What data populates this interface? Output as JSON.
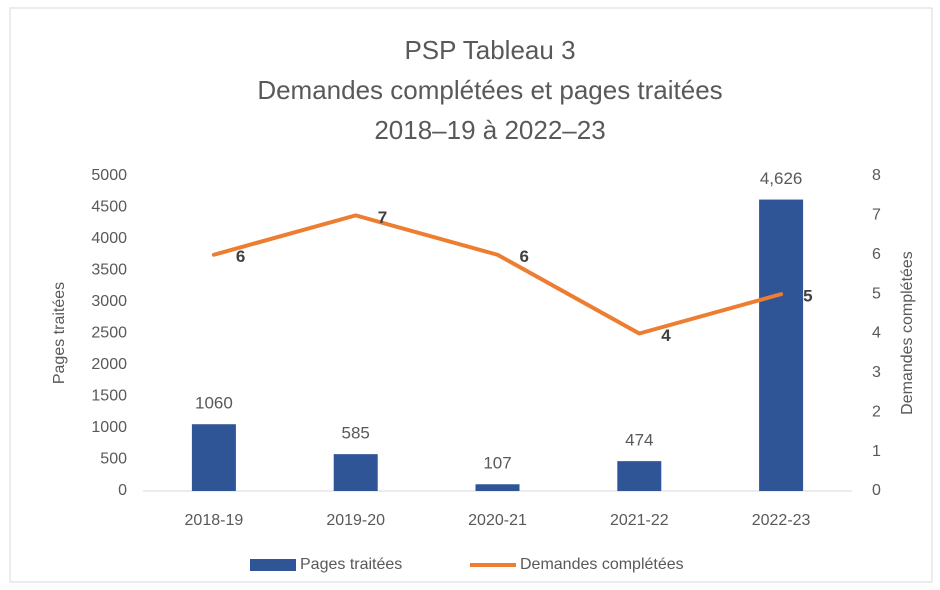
{
  "chart_data": {
    "type": "bar",
    "title": [
      "PSP Tableau 3",
      "Demandes complétées et pages traitées",
      "2018–19 à 2022–23"
    ],
    "categories": [
      "2018-19",
      "2019-20",
      "2020-21",
      "2021-22",
      "2022-23"
    ],
    "series": [
      {
        "name": "Pages traitées",
        "type": "bar",
        "color": "#2f5597",
        "values": [
          1060,
          585,
          107,
          474,
          4626
        ],
        "value_labels": [
          "1060",
          "585",
          "107",
          "474",
          "4,626"
        ]
      },
      {
        "name": "Demandes complétées",
        "type": "line",
        "axis": "y2",
        "color": "#ed7d31",
        "values": [
          6,
          7,
          6,
          4,
          5
        ]
      }
    ],
    "ylabel": "Pages traitées",
    "y2label": "Demandes complétées",
    "ylim": [
      0,
      5000
    ],
    "yticks": [
      0,
      500,
      1000,
      1500,
      2000,
      2500,
      3000,
      3500,
      4000,
      4500,
      5000
    ],
    "y2lim": [
      0,
      8
    ],
    "y2ticks": [
      0,
      1,
      2,
      3,
      4,
      5,
      6,
      7,
      8
    ],
    "grid": false,
    "legend": "bottom"
  }
}
